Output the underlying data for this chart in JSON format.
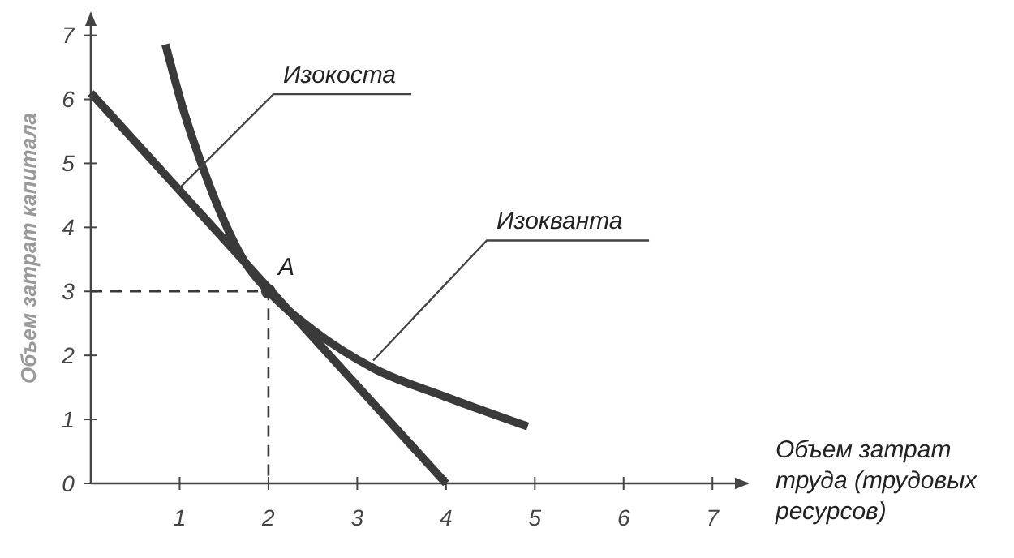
{
  "chart_data": {
    "type": "line",
    "xlabel": "Объем затрат труда (трудовых ресурсов)",
    "ylabel": "Объем затрат капитала",
    "xlim": [
      0,
      7.4
    ],
    "ylim": [
      0,
      7.35
    ],
    "xticks": [
      1,
      2,
      3,
      4,
      5,
      6,
      7
    ],
    "yticks": [
      0,
      1,
      2,
      3,
      4,
      5,
      6,
      7
    ],
    "grid": false,
    "marker": "none",
    "series": [
      {
        "color": "#3a3a3a",
        "x": [
          0,
          4
        ],
        "values": [
          6.1,
          0
        ]
      },
      {
        "color": "#3a3a3a",
        "x": [
          0.84,
          1.05,
          1.26,
          1.5,
          1.72,
          2,
          2.5,
          3.18,
          4,
          4.92
        ],
        "values": [
          6.86,
          5.8,
          4.94,
          4.1,
          3.49,
          3,
          2.4,
          1.8,
          1.35,
          0.89
        ]
      },
      {
        "color": "#3a3a3a",
        "x": [
          0,
          2,
          2
        ],
        "values": [
          3,
          3,
          0
        ],
        "line_style": "dashed"
      },
      {
        "type": "scatter",
        "color": "#3a3a3a",
        "marker": "circle",
        "x": [
          2
        ],
        "values": [
          3
        ]
      }
    ],
    "annotations": [
      {
        "text": "Изокоста",
        "x": 0.96,
        "y": 4.56
      },
      {
        "text": "Изокванта",
        "x": 3.18,
        "y": 1.92
      },
      {
        "text": "A",
        "x": 2,
        "y": 3
      }
    ]
  }
}
